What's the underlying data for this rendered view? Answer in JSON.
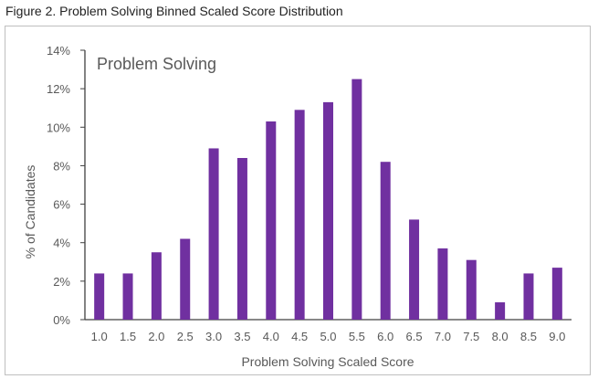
{
  "figure_caption": "Figure 2. Problem Solving Binned Scaled Score Distribution",
  "colors": {
    "bar": "#7030a0",
    "axis": "#404040",
    "text": "#595959"
  },
  "chart_data": {
    "type": "bar",
    "title": "Problem Solving",
    "xlabel": "Problem Solving Scaled Score",
    "ylabel": "% of Candidates",
    "categories": [
      "1.0",
      "1.5",
      "2.0",
      "2.5",
      "3.0",
      "3.5",
      "4.0",
      "4.5",
      "5.0",
      "5.5",
      "6.0",
      "6.5",
      "7.0",
      "7.5",
      "8.0",
      "8.5",
      "9.0"
    ],
    "values": [
      2.4,
      2.4,
      3.5,
      4.2,
      8.9,
      8.4,
      10.3,
      10.9,
      11.3,
      12.5,
      8.2,
      5.2,
      3.7,
      3.1,
      0.9,
      2.4,
      2.7
    ],
    "ylim": [
      0,
      14
    ],
    "yticks": [
      "0%",
      "2%",
      "4%",
      "6%",
      "8%",
      "10%",
      "12%",
      "14%"
    ],
    "grid": false,
    "legend": "none"
  }
}
